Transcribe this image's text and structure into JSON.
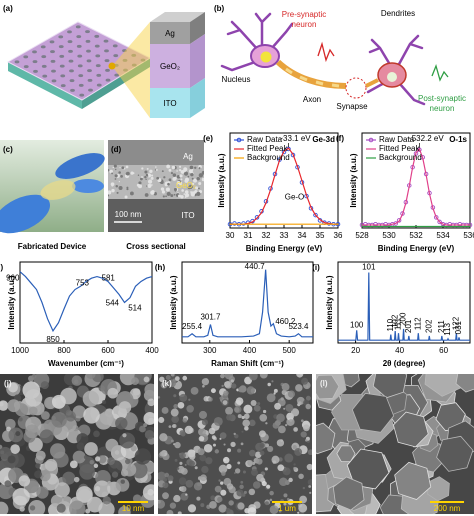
{
  "panels": {
    "a": {
      "label": "(a)",
      "layers": [
        "Ag",
        "GeO₂",
        "ITO"
      ]
    },
    "b": {
      "label": "(b)",
      "pre_synaptic": "Pre-synaptic neuron",
      "nucleus": "Nucleus",
      "axon": "Axon",
      "synapse": "Synapse",
      "dendrites": "Dendrites",
      "post_synaptic": "Post-synaptic neuron"
    },
    "c": {
      "label": "(c)",
      "caption": "Fabricated Device"
    },
    "d": {
      "label": "(d)",
      "layers": [
        "Ag",
        "GeO₂",
        "ITO"
      ],
      "scale_bar": "100 nm",
      "caption": "Cross sectional"
    },
    "j": {
      "label": "(j)",
      "scale_bar": "10 nm"
    },
    "k": {
      "label": "(k)",
      "scale_bar": "1 um"
    },
    "l": {
      "label": "(l)",
      "scale_bar": "200 nm"
    }
  },
  "chart_data": [
    {
      "type": "line",
      "panel": "(e)",
      "xlabel": "Binding Energy (eV)",
      "ylabel": "Intensity (a.u.)",
      "x": [
        30,
        30.25,
        30.5,
        30.75,
        31,
        31.25,
        31.5,
        31.75,
        32,
        32.25,
        32.5,
        32.75,
        33,
        33.25,
        33.5,
        33.75,
        34,
        34.25,
        34.5,
        34.75,
        35,
        35.25,
        35.5,
        35.75,
        36
      ],
      "xlim": [
        30,
        36
      ],
      "xticks": [
        30,
        31,
        32,
        33,
        34,
        35,
        36
      ],
      "ylim": [
        0,
        1.25
      ],
      "legend": "upper left",
      "series": [
        {
          "name": "Raw Data",
          "color": "#2f4fd6",
          "marker": true,
          "values": [
            0.05,
            0.06,
            0.05,
            0.06,
            0.07,
            0.09,
            0.14,
            0.22,
            0.35,
            0.52,
            0.71,
            0.9,
            1.0,
            1.04,
            0.96,
            0.8,
            0.6,
            0.42,
            0.26,
            0.17,
            0.1,
            0.07,
            0.06,
            0.05,
            0.05
          ]
        },
        {
          "name": "Fitted Peak",
          "color": "#e8262b",
          "values": [
            0.05,
            0.05,
            0.05,
            0.05,
            0.06,
            0.08,
            0.13,
            0.2,
            0.33,
            0.5,
            0.7,
            0.89,
            1.01,
            1.05,
            0.97,
            0.81,
            0.62,
            0.43,
            0.27,
            0.17,
            0.11,
            0.07,
            0.06,
            0.05,
            0.05
          ]
        },
        {
          "name": "Background",
          "color": "#f59f00",
          "values": [
            0.05,
            0.05,
            0.05,
            0.05,
            0.05,
            0.05,
            0.05,
            0.05,
            0.05,
            0.05,
            0.05,
            0.05,
            0.05,
            0.05,
            0.05,
            0.05,
            0.05,
            0.05,
            0.05,
            0.05,
            0.05,
            0.05,
            0.05,
            0.05,
            0.05
          ]
        }
      ],
      "annotations": [
        "~33.1 eV",
        "Ge-O"
      ],
      "core_level": "Ge-3d"
    },
    {
      "type": "line",
      "panel": "(f)",
      "xlabel": "Binding Energy (eV)",
      "ylabel": "Intensity (a.u.)",
      "x": [
        528,
        528.25,
        528.5,
        528.75,
        529,
        529.25,
        529.5,
        529.75,
        530,
        530.25,
        530.5,
        530.75,
        531,
        531.25,
        531.5,
        531.75,
        532,
        532.25,
        532.5,
        532.75,
        533,
        533.25,
        533.5,
        533.75,
        534,
        534.25,
        534.5,
        534.75,
        535,
        535.25,
        535.5,
        535.75,
        536
      ],
      "xlim": [
        528,
        536
      ],
      "xticks": [
        528,
        530,
        532,
        534,
        536
      ],
      "ylim": [
        0,
        1.25
      ],
      "legend": "upper left",
      "series": [
        {
          "name": "Raw Data",
          "color": "#a64cc4",
          "marker": true,
          "values": [
            0.04,
            0.05,
            0.04,
            0.04,
            0.05,
            0.04,
            0.04,
            0.05,
            0.04,
            0.05,
            0.06,
            0.1,
            0.19,
            0.34,
            0.56,
            0.8,
            0.98,
            1.03,
            0.93,
            0.71,
            0.46,
            0.27,
            0.14,
            0.08,
            0.05,
            0.04,
            0.05,
            0.04,
            0.04,
            0.05,
            0.04,
            0.04,
            0.04
          ]
        },
        {
          "name": "Fitted Peak",
          "color": "#e0408a",
          "values": [
            0.04,
            0.04,
            0.04,
            0.04,
            0.04,
            0.04,
            0.04,
            0.04,
            0.04,
            0.05,
            0.06,
            0.09,
            0.18,
            0.33,
            0.55,
            0.8,
            0.99,
            1.04,
            0.92,
            0.7,
            0.45,
            0.26,
            0.14,
            0.08,
            0.05,
            0.04,
            0.04,
            0.04,
            0.04,
            0.04,
            0.04,
            0.04,
            0.04
          ]
        },
        {
          "name": "Background",
          "color": "#2f9e44",
          "values": [
            0.02,
            0.02,
            0.02,
            0.02,
            0.02,
            0.02,
            0.02,
            0.02,
            0.02,
            0.02,
            0.02,
            0.02,
            0.02,
            0.02,
            0.02,
            0.02,
            0.02,
            0.02,
            0.02,
            0.02,
            0.02,
            0.02,
            0.02,
            0.02,
            0.02,
            0.02,
            0.02,
            0.02,
            0.02,
            0.02,
            0.02,
            0.02,
            0.02
          ]
        }
      ],
      "annotations": [
        "~532.2 eV"
      ],
      "core_level": "O-1s"
    },
    {
      "type": "line",
      "panel": "(g)",
      "xlabel": "Wavenumber (cm⁻¹)",
      "ylabel": "Intensity (a.u.)",
      "x": [
        1000,
        975,
        950,
        925,
        900,
        875,
        850,
        825,
        800,
        775,
        750,
        725,
        700,
        675,
        650,
        625,
        600,
        575,
        550,
        525,
        500,
        475,
        450,
        425,
        400
      ],
      "xlim": [
        1000,
        400
      ],
      "xticks": [
        1000,
        800,
        600,
        400
      ],
      "ylim": [
        0,
        1
      ],
      "series": [
        {
          "color": "#2b5fb8",
          "values": [
            0.88,
            0.82,
            0.74,
            0.66,
            0.5,
            0.3,
            0.15,
            0.25,
            0.42,
            0.58,
            0.66,
            0.7,
            0.76,
            0.8,
            0.82,
            0.8,
            0.76,
            0.68,
            0.6,
            0.5,
            0.56,
            0.7,
            0.76,
            0.8,
            0.82
          ]
        }
      ],
      "peaks": [
        960,
        850,
        753,
        581,
        544,
        514
      ]
    },
    {
      "type": "line",
      "panel": "(h)",
      "xlabel": "Raman Shift (cm⁻¹)",
      "ylabel": "Intensity (a.u.)",
      "x": [
        230,
        245,
        255.4,
        265,
        285,
        295,
        301.7,
        308,
        320,
        350,
        380,
        410,
        425,
        433,
        440.7,
        447,
        454,
        460.2,
        468,
        480,
        500,
        515,
        523.4,
        532,
        560
      ],
      "xlim": [
        230,
        560
      ],
      "xticks": [
        300,
        400,
        500
      ],
      "ylim": [
        0,
        1.05
      ],
      "series": [
        {
          "color": "#2b5fb8",
          "values": [
            0.08,
            0.08,
            0.12,
            0.08,
            0.08,
            0.1,
            0.24,
            0.1,
            0.08,
            0.08,
            0.08,
            0.09,
            0.12,
            0.4,
            0.95,
            0.4,
            0.22,
            0.25,
            0.12,
            0.09,
            0.08,
            0.09,
            0.12,
            0.08,
            0.08
          ]
        }
      ],
      "peaks": [
        255.4,
        301.7,
        440.7,
        460.2,
        523.4
      ]
    },
    {
      "type": "line",
      "panel": "(i)",
      "xlabel": "2θ (degree)",
      "ylabel": "Intensity (a.u.)",
      "x": [
        12,
        20.1,
        20.5,
        20.9,
        25.6,
        26,
        26.4,
        35.7,
        36,
        36.3,
        37.7,
        38,
        38.3,
        39.2,
        39.5,
        39.8,
        41.5,
        41.8,
        42.1,
        43.9,
        44.2,
        44.5,
        48.2,
        48.5,
        48.8,
        53.2,
        53.5,
        53.8,
        58.9,
        59.2,
        59.5,
        61.7,
        62,
        62.3,
        65.5,
        65.8,
        66.1,
        66.7,
        67,
        67.3,
        72
      ],
      "xlim": [
        12,
        72
      ],
      "xticks": [
        20,
        40,
        60
      ],
      "ylim": [
        0,
        1.15
      ],
      "series": [
        {
          "color": "#2b5fb8",
          "values": [
            0.04,
            0.04,
            0.18,
            0.04,
            0.04,
            1.0,
            0.04,
            0.04,
            0.12,
            0.04,
            0.04,
            0.17,
            0.04,
            0.04,
            0.14,
            0.04,
            0.04,
            0.2,
            0.04,
            0.04,
            0.1,
            0.04,
            0.04,
            0.14,
            0.04,
            0.04,
            0.1,
            0.04,
            0.04,
            0.1,
            0.04,
            0.04,
            0.06,
            0.04,
            0.04,
            0.14,
            0.04,
            0.04,
            0.08,
            0.04,
            0.04
          ]
        }
      ],
      "peaks": [
        {
          "x": 20.5,
          "label": "100"
        },
        {
          "x": 26,
          "label": "101"
        },
        {
          "x": 36,
          "label": "110"
        },
        {
          "x": 38,
          "label": "102"
        },
        {
          "x": 39.5,
          "label": "111"
        },
        {
          "x": 41.8,
          "label": "200"
        },
        {
          "x": 44.2,
          "label": "201"
        },
        {
          "x": 48.5,
          "label": "112"
        },
        {
          "x": 53.5,
          "label": "202"
        },
        {
          "x": 59.2,
          "label": "211"
        },
        {
          "x": 62,
          "label": "113"
        },
        {
          "x": 65.8,
          "label": "122"
        },
        {
          "x": 67,
          "label": "031"
        }
      ]
    }
  ]
}
